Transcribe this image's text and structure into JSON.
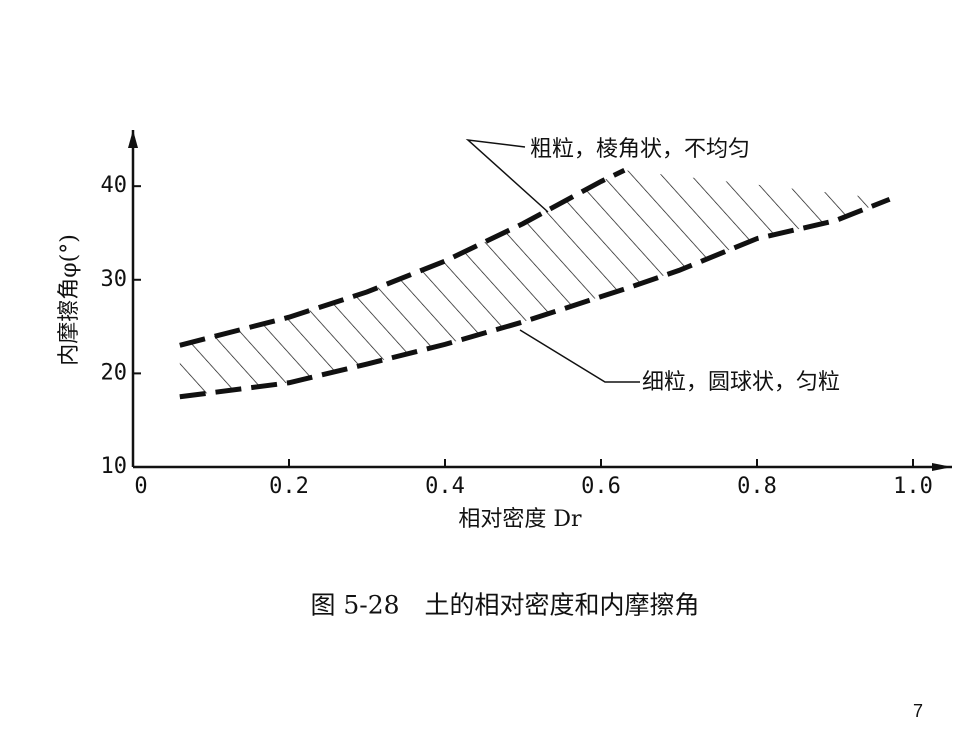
{
  "chart_data": {
    "type": "line",
    "x_label": "相对密度 Dr",
    "y_label": "内摩擦角φ(°)",
    "x": [
      0.06,
      0.2,
      0.3,
      0.4,
      0.5,
      0.6,
      0.63,
      0.7,
      0.8,
      0.9,
      0.97
    ],
    "series": [
      {
        "name": "粗粒，棱角状，不均匀",
        "color": "#111111",
        "values": [
          23,
          26,
          28.7,
          32,
          36,
          40.5,
          41.7,
          null,
          null,
          null,
          null
        ]
      },
      {
        "name": "细粒，圆球状，匀粒",
        "color": "#111111",
        "values": [
          17.5,
          19,
          21,
          23.1,
          25.5,
          28.2,
          29,
          31,
          34.4,
          36.3,
          38.6
        ]
      }
    ],
    "xlim": [
      0,
      1.05
    ],
    "ylim": [
      10,
      46
    ],
    "xticks": [
      0,
      0.2,
      0.4,
      0.6,
      0.8,
      {
        "value": 1,
        "label": "1.0"
      }
    ],
    "yticks": [
      10,
      20,
      30,
      40
    ],
    "caption": "图 5-28　土的相对密度和内摩擦角",
    "page_number": "7"
  }
}
